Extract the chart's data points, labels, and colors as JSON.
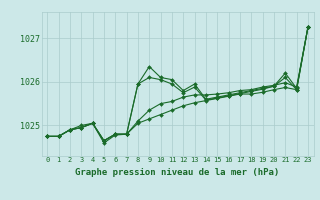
{
  "title": "Graphe pression niveau de la mer (hPa)",
  "bg_color": "#cce8e8",
  "grid_color": "#aacccc",
  "line_color": "#1a6b2a",
  "ylim": [
    1024.3,
    1027.6
  ],
  "yticks": [
    1025,
    1026,
    1027
  ],
  "series1": [
    1024.75,
    1024.75,
    1024.9,
    1024.95,
    1025.05,
    1024.65,
    1024.8,
    1024.8,
    1025.95,
    1026.35,
    1026.1,
    1026.05,
    1025.8,
    1025.95,
    1025.6,
    1025.65,
    1025.7,
    1025.75,
    1025.8,
    1025.85,
    1025.9,
    1026.2,
    1025.85,
    1027.25
  ],
  "series2": [
    1024.75,
    1024.75,
    1024.9,
    1024.95,
    1025.05,
    1024.65,
    1024.8,
    1024.8,
    1025.1,
    1025.35,
    1025.5,
    1025.55,
    1025.65,
    1025.7,
    1025.7,
    1025.72,
    1025.75,
    1025.8,
    1025.82,
    1025.88,
    1025.92,
    1025.98,
    1025.88,
    1027.25
  ],
  "series3": [
    1024.75,
    1024.75,
    1024.9,
    1024.95,
    1025.05,
    1024.65,
    1024.8,
    1024.8,
    1025.05,
    1025.15,
    1025.25,
    1025.35,
    1025.45,
    1025.52,
    1025.57,
    1025.62,
    1025.67,
    1025.72,
    1025.72,
    1025.76,
    1025.82,
    1025.87,
    1025.82,
    1027.25
  ],
  "series4": [
    1024.75,
    1024.75,
    1024.9,
    1025.0,
    1025.05,
    1024.6,
    1024.78,
    1024.8,
    1025.95,
    1026.1,
    1026.05,
    1025.95,
    1025.75,
    1025.88,
    1025.58,
    1025.63,
    1025.68,
    1025.73,
    1025.78,
    1025.83,
    1025.9,
    1026.1,
    1025.82,
    1027.25
  ]
}
